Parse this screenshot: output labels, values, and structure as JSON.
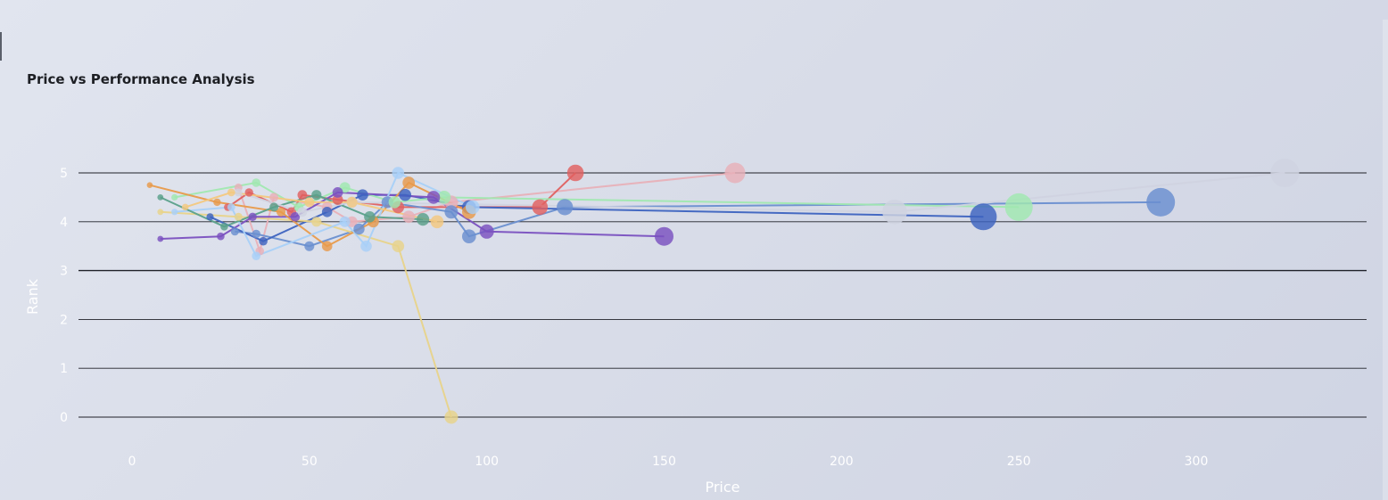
{
  "chart_data": {
    "type": "scatter",
    "title": "Price vs Performance Analysis",
    "xlabel": "Price",
    "ylabel": "Rank",
    "xlim": [
      -15,
      345
    ],
    "ylim": [
      -0.7,
      5.8
    ],
    "x_ticks": [
      0,
      50,
      100,
      150,
      200,
      250,
      300
    ],
    "y_ticks": [
      0,
      1,
      2,
      3,
      4,
      5
    ],
    "grid": "horizontal",
    "legend": "none",
    "series": [
      {
        "color": "#e8b0b8",
        "points": [
          [
            30,
            4.7
          ],
          [
            36,
            3.4
          ],
          [
            40,
            4.5
          ],
          [
            55,
            4.3
          ],
          [
            62,
            4.0
          ],
          [
            78,
            4.1
          ],
          [
            90,
            4.4
          ],
          [
            170,
            5.0
          ]
        ]
      },
      {
        "color": "#e06060",
        "points": [
          [
            27,
            4.3
          ],
          [
            33,
            4.6
          ],
          [
            45,
            4.2
          ],
          [
            48,
            4.55
          ],
          [
            58,
            4.45
          ],
          [
            75,
            4.3
          ],
          [
            115,
            4.3
          ],
          [
            125,
            5.0
          ]
        ]
      },
      {
        "color": "#6a8fd0",
        "points": [
          [
            29,
            3.8
          ],
          [
            35,
            3.75
          ],
          [
            50,
            3.5
          ],
          [
            64,
            3.85
          ],
          [
            72,
            4.4
          ],
          [
            90,
            4.2
          ],
          [
            95,
            3.7
          ],
          [
            122,
            4.3
          ],
          [
            290,
            4.4
          ]
        ]
      },
      {
        "color": "#3d63c0",
        "points": [
          [
            22,
            4.1
          ],
          [
            37,
            3.6
          ],
          [
            55,
            4.2
          ],
          [
            65,
            4.55
          ],
          [
            77,
            4.55
          ],
          [
            95,
            4.3
          ],
          [
            240,
            4.1
          ]
        ]
      },
      {
        "color": "#a0e8b0",
        "points": [
          [
            12,
            4.5
          ],
          [
            35,
            4.8
          ],
          [
            47,
            4.3
          ],
          [
            60,
            4.7
          ],
          [
            74,
            4.4
          ],
          [
            88,
            4.5
          ],
          [
            250,
            4.3
          ]
        ]
      },
      {
        "color": "#e8d38a",
        "points": [
          [
            8,
            4.2
          ],
          [
            30,
            4.1
          ],
          [
            52,
            4.0
          ],
          [
            75,
            3.5
          ],
          [
            90,
            0.0
          ]
        ]
      },
      {
        "color": "#7a50c0",
        "points": [
          [
            8,
            3.65
          ],
          [
            25,
            3.7
          ],
          [
            34,
            4.1
          ],
          [
            46,
            4.1
          ],
          [
            58,
            4.6
          ],
          [
            85,
            4.5
          ],
          [
            100,
            3.8
          ],
          [
            150,
            3.7
          ]
        ]
      },
      {
        "color": "#e89a4a",
        "points": [
          [
            5,
            4.75
          ],
          [
            24,
            4.4
          ],
          [
            42,
            4.2
          ],
          [
            55,
            3.5
          ],
          [
            68,
            4.0
          ],
          [
            78,
            4.8
          ],
          [
            95,
            4.2
          ]
        ]
      },
      {
        "color": "#a8d0f8",
        "points": [
          [
            12,
            4.2
          ],
          [
            28,
            4.3
          ],
          [
            35,
            3.3
          ],
          [
            60,
            4.0
          ],
          [
            66,
            3.5
          ],
          [
            75,
            5.0
          ],
          [
            96,
            4.3
          ]
        ]
      },
      {
        "color": "#5aa08a",
        "points": [
          [
            8,
            4.5
          ],
          [
            26,
            3.9
          ],
          [
            40,
            4.3
          ],
          [
            52,
            4.55
          ],
          [
            67,
            4.1
          ],
          [
            82,
            4.05
          ]
        ]
      },
      {
        "color": "#d0d3e0",
        "points": [
          [
            30,
            4.6
          ],
          [
            48,
            4.2
          ],
          [
            62,
            4.4
          ],
          [
            215,
            4.2
          ],
          [
            325,
            5.0
          ]
        ]
      },
      {
        "color": "#f3c880",
        "points": [
          [
            15,
            4.3
          ],
          [
            28,
            4.6
          ],
          [
            50,
            4.4
          ],
          [
            62,
            4.4
          ],
          [
            86,
            4.0
          ]
        ]
      }
    ]
  }
}
